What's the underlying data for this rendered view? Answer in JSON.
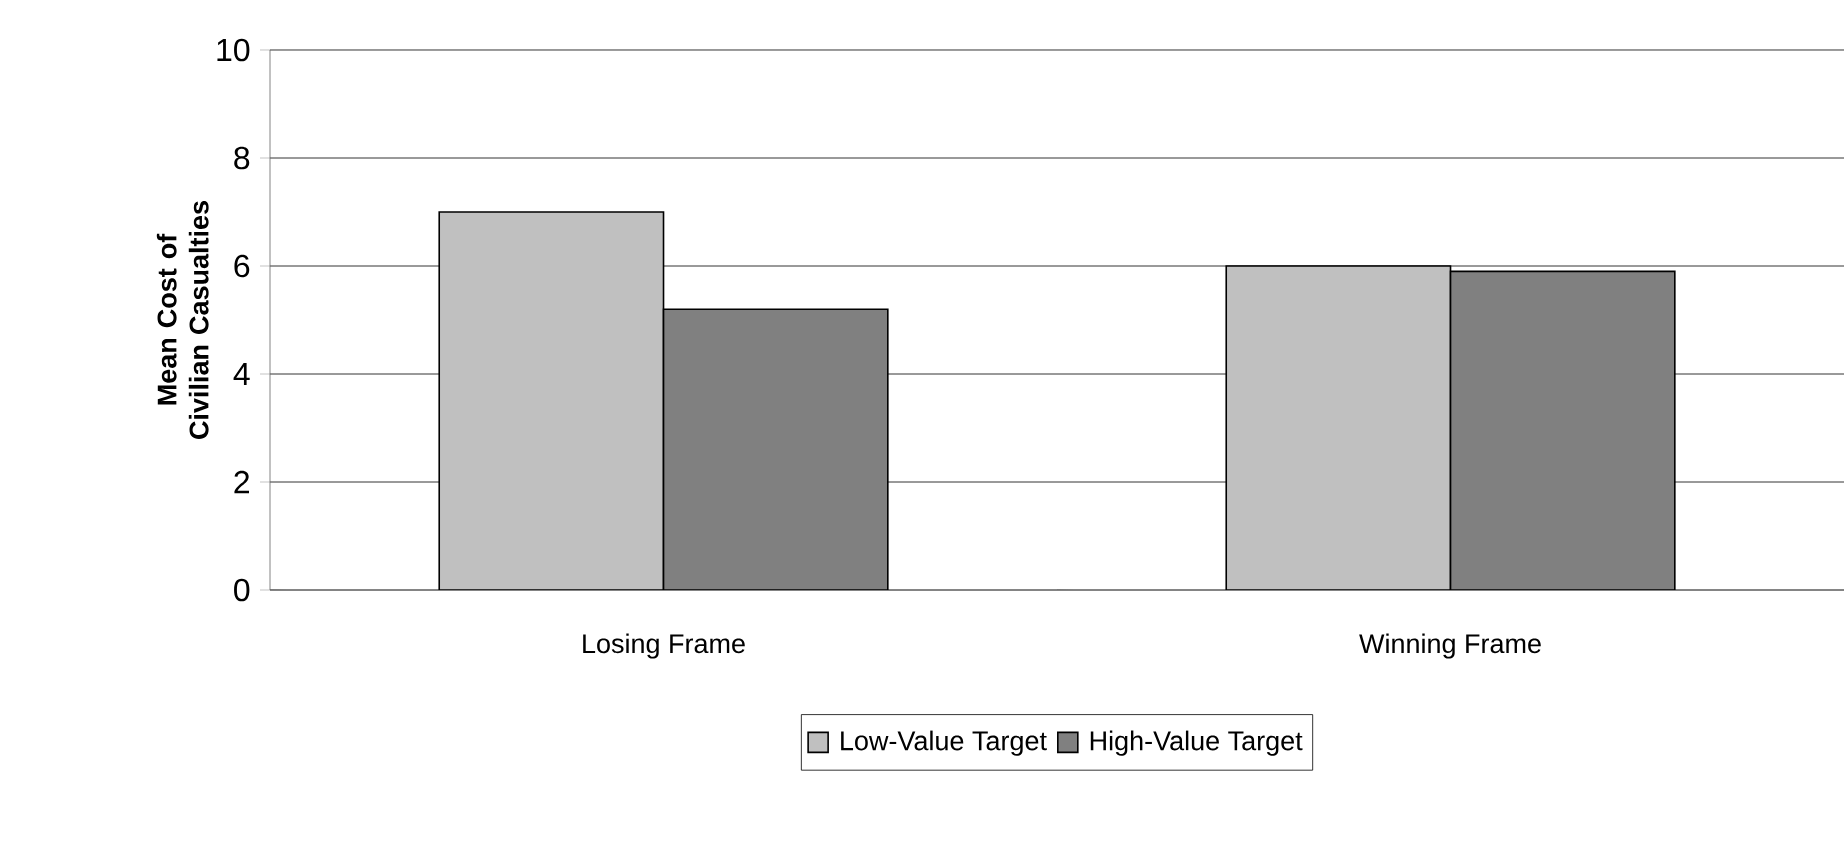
{
  "chart_data": {
    "type": "bar",
    "ylabel": "Mean Cost of Civilian Casualties",
    "categories": [
      "Losing Frame",
      "Winning Frame"
    ],
    "series": [
      {
        "name": "Low-Value Target",
        "color": "#c0c0c0",
        "values": [
          7.0,
          6.0
        ]
      },
      {
        "name": "High-Value Target",
        "color": "#808080",
        "values": [
          5.2,
          5.9
        ]
      }
    ],
    "ylim": [
      0,
      10
    ],
    "yticks": [
      0,
      2,
      4,
      6,
      8,
      10
    ],
    "grid": "y",
    "legend": "bottom"
  }
}
